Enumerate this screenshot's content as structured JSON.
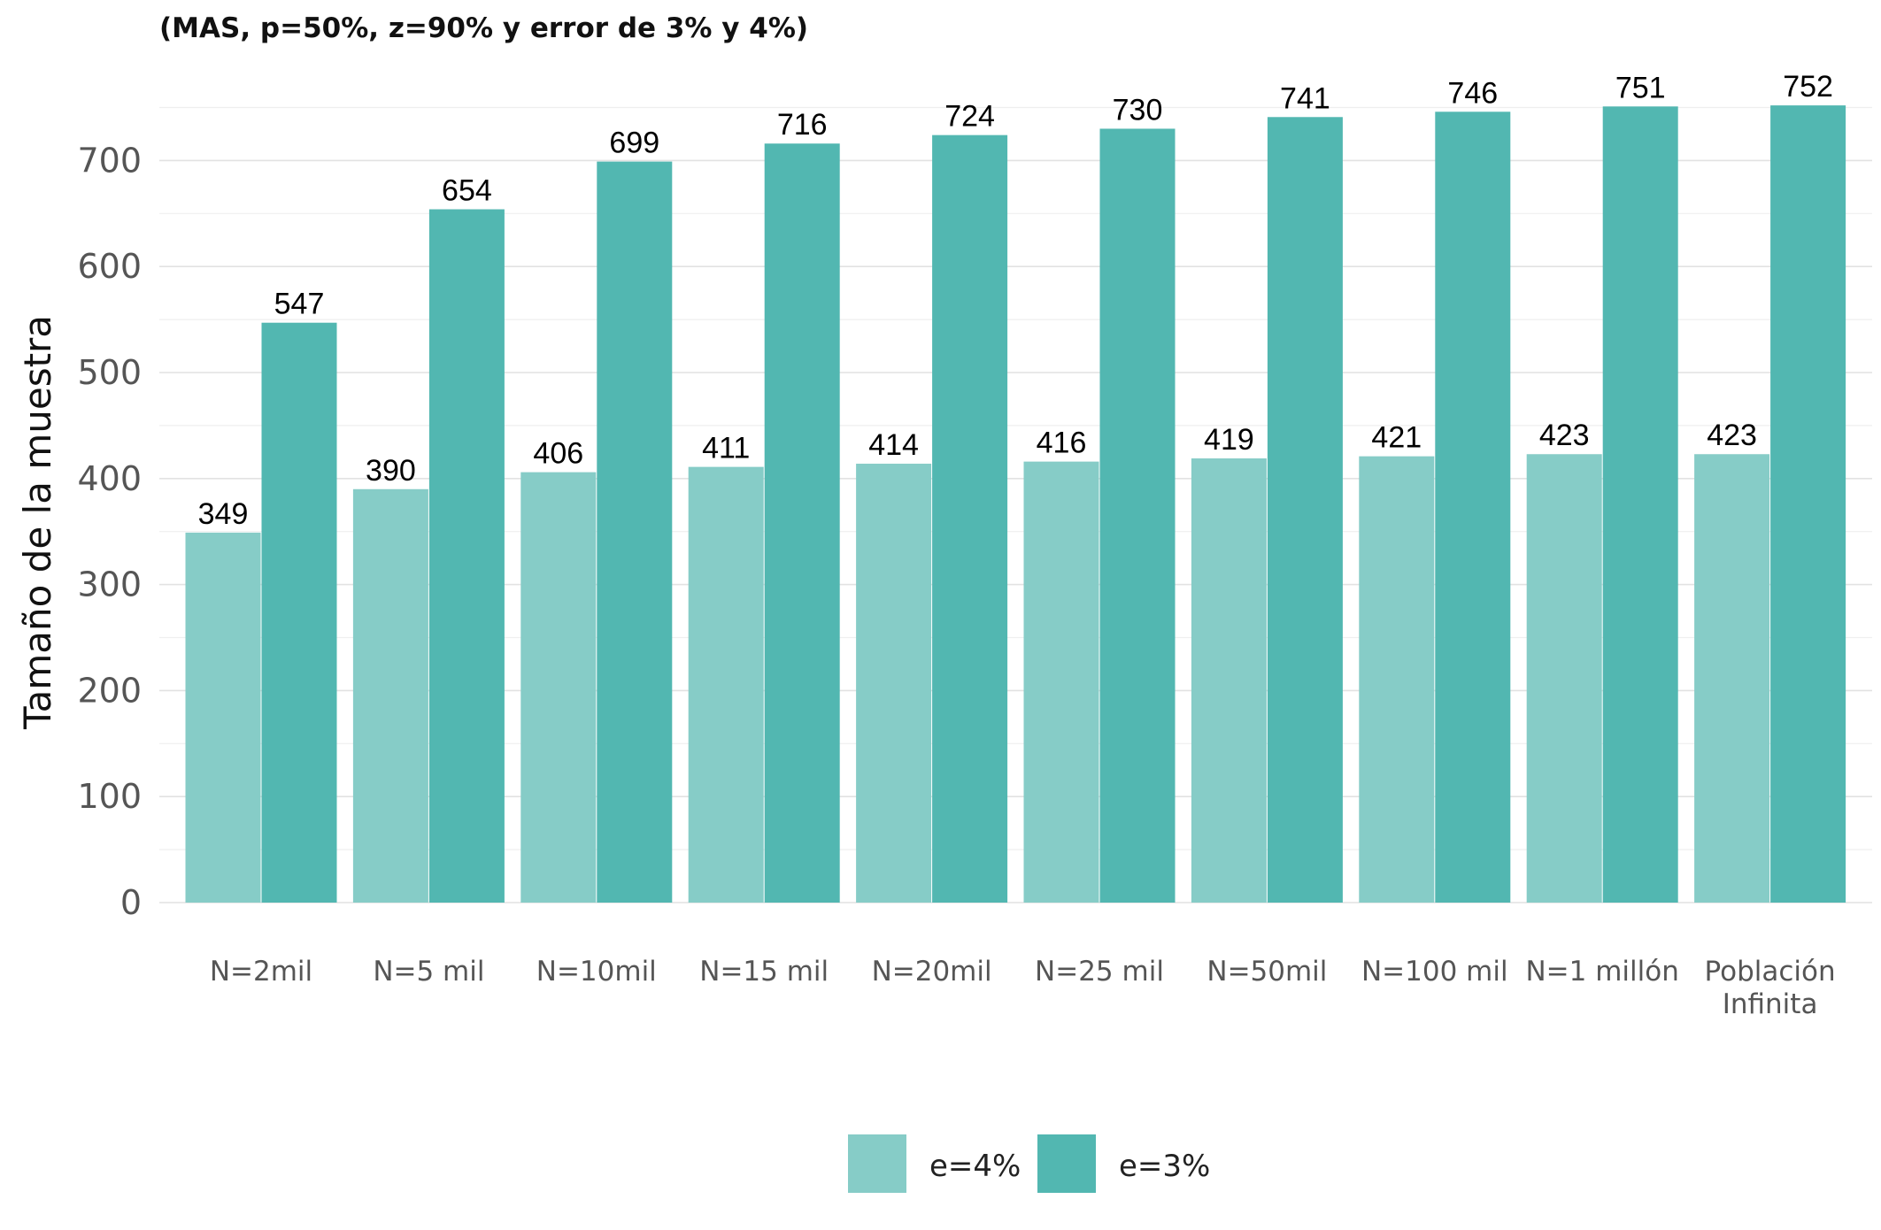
{
  "chart_data": {
    "type": "bar",
    "title": "(MAS, p=50%, z=90% y error de 3% y 4%)",
    "xlabel": "",
    "ylabel": "Tamaño de la muestra",
    "ylim": [
      0,
      752
    ],
    "yticks": [
      0,
      100,
      200,
      300,
      400,
      500,
      600,
      700
    ],
    "grid": true,
    "legend": "bottom",
    "categories": [
      "N=2mil",
      "N=5 mil",
      "N=10mil",
      "N=15 mil",
      "N=20mil",
      "N=25 mil",
      "N=50mil",
      "N=100 mil",
      "N=1 millón",
      "Población Infinita"
    ],
    "series": [
      {
        "name": "e=4%",
        "color": "#86ccc7",
        "values": [
          349,
          390,
          406,
          411,
          414,
          416,
          419,
          421,
          423,
          423
        ]
      },
      {
        "name": "e=3%",
        "color": "#52b7b1",
        "values": [
          547,
          654,
          699,
          716,
          724,
          730,
          741,
          746,
          751,
          752
        ]
      }
    ]
  }
}
